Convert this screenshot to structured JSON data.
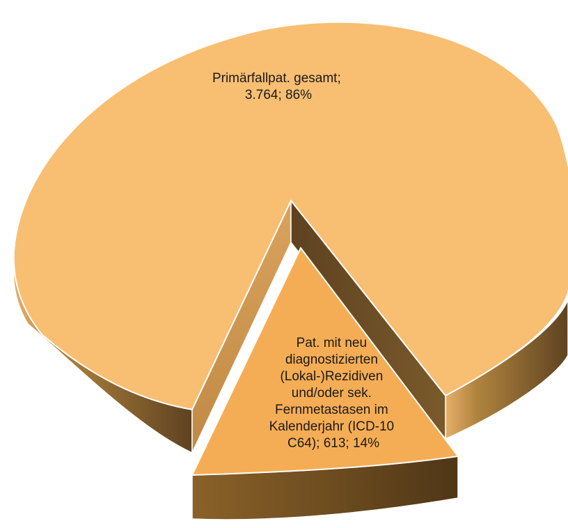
{
  "chart_data": {
    "type": "pie",
    "style": "3d-exploded",
    "slices": [
      {
        "label_lines": [
          "Primärfallpat. gesamt;",
          "3.764; 86%"
        ],
        "name": "Primärfallpat. gesamt",
        "value": 3764,
        "percent": "86%",
        "color": "#f8be72"
      },
      {
        "label_lines": [
          "Pat. mit neu",
          "diagnostizierten",
          "(Lokal-)Rezidiven",
          "und/oder sek.",
          "Fernmetastasen im",
          "Kalenderjahr (ICD-10",
          "C64); 613; 14%"
        ],
        "name": "Pat. mit neu diagnostizierten (Lokal-)Rezidiven und/oder sek. Fernmetastasen im Kalenderjahr (ICD-10 C64)",
        "value": 613,
        "percent": "14%",
        "color": "#f5ad55"
      }
    ]
  }
}
